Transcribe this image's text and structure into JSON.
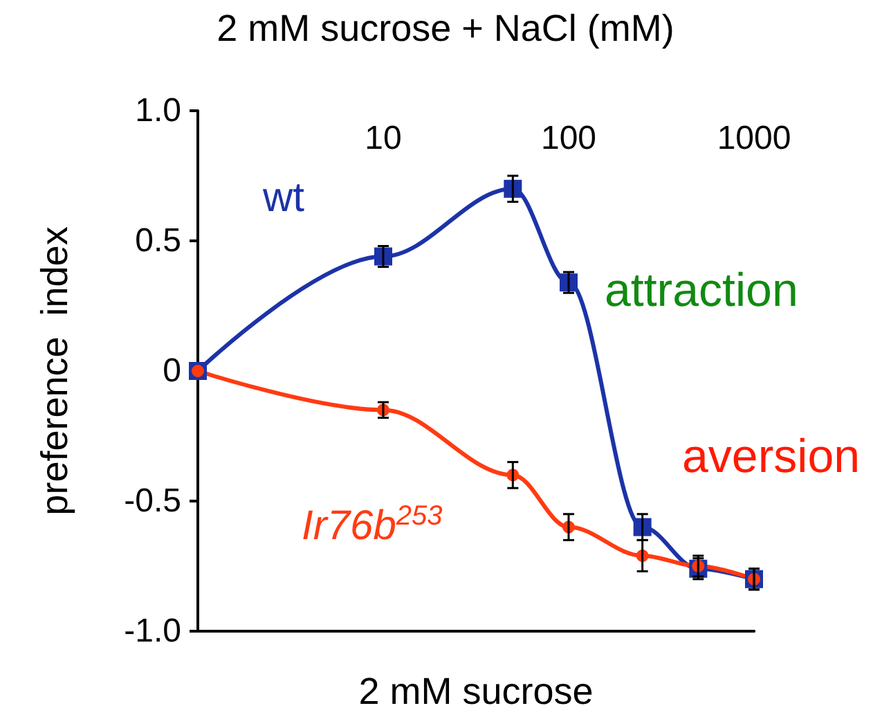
{
  "chart_data": {
    "type": "line",
    "title": "2 mM sucrose + NaCl (mM)",
    "xlabel": "2 mM sucrose",
    "ylabel": "preference  index",
    "log": "x",
    "xlim": [
      1,
      1000
    ],
    "xticks": [
      10,
      100,
      1000
    ],
    "ylim": [
      -1,
      1
    ],
    "yticks": [
      {
        "value": -1,
        "label": "-1.0"
      },
      {
        "value": -0.5,
        "label": "-0.5"
      },
      {
        "value": 0,
        "label": "0"
      },
      {
        "value": 0.5,
        "label": "0.5"
      },
      {
        "value": 1,
        "label": "1.0"
      }
    ],
    "grid": false,
    "legend": false,
    "series": [
      {
        "name": "wt",
        "color": "#1c33a8",
        "marker": "square",
        "x": [
          1,
          10,
          50,
          100,
          250,
          500,
          1000
        ],
        "values": [
          0,
          0.44,
          0.7,
          0.34,
          -0.6,
          -0.76,
          -0.8
        ],
        "errors": [
          null,
          0.04,
          0.05,
          0.04,
          0.05,
          0.04,
          0.04
        ]
      },
      {
        "name": "Ir76b$^{253}$",
        "color": "#ff3b12",
        "marker": "circle",
        "x": [
          1,
          10,
          50,
          100,
          250,
          500,
          1000
        ],
        "values": [
          0,
          -0.15,
          -0.4,
          -0.6,
          -0.71,
          -0.75,
          -0.8
        ],
        "errors": [
          null,
          0.03,
          0.05,
          0.05,
          0.06,
          0.04,
          0.04
        ]
      }
    ],
    "annotations": [
      "attraction",
      "aversion"
    ]
  }
}
